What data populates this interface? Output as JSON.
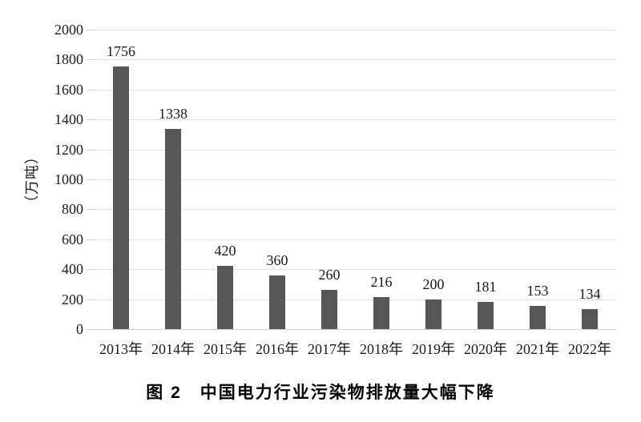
{
  "chart_data": {
    "type": "bar",
    "title": "图 2　中国电力行业污染物排放量大幅下降",
    "ylabel": "（万吨）",
    "xlabel": "",
    "categories": [
      "2013年",
      "2014年",
      "2015年",
      "2016年",
      "2017年",
      "2018年",
      "2019年",
      "2020年",
      "2021年",
      "2022年"
    ],
    "values": [
      1756,
      1338,
      420,
      360,
      260,
      216,
      200,
      181,
      153,
      134
    ],
    "ylim": [
      0,
      2000
    ],
    "ytick_step": 200,
    "ytick_labels": [
      "0",
      "200",
      "400",
      "600",
      "800",
      "1000",
      "1200",
      "1400",
      "1600",
      "1800",
      "2000"
    ],
    "grid": true,
    "legend_position": "none",
    "bar_color": "#575757",
    "gridline_color": "#e0e0e0",
    "text_color": "#1a1a1a",
    "background_color": "#ffffff"
  }
}
